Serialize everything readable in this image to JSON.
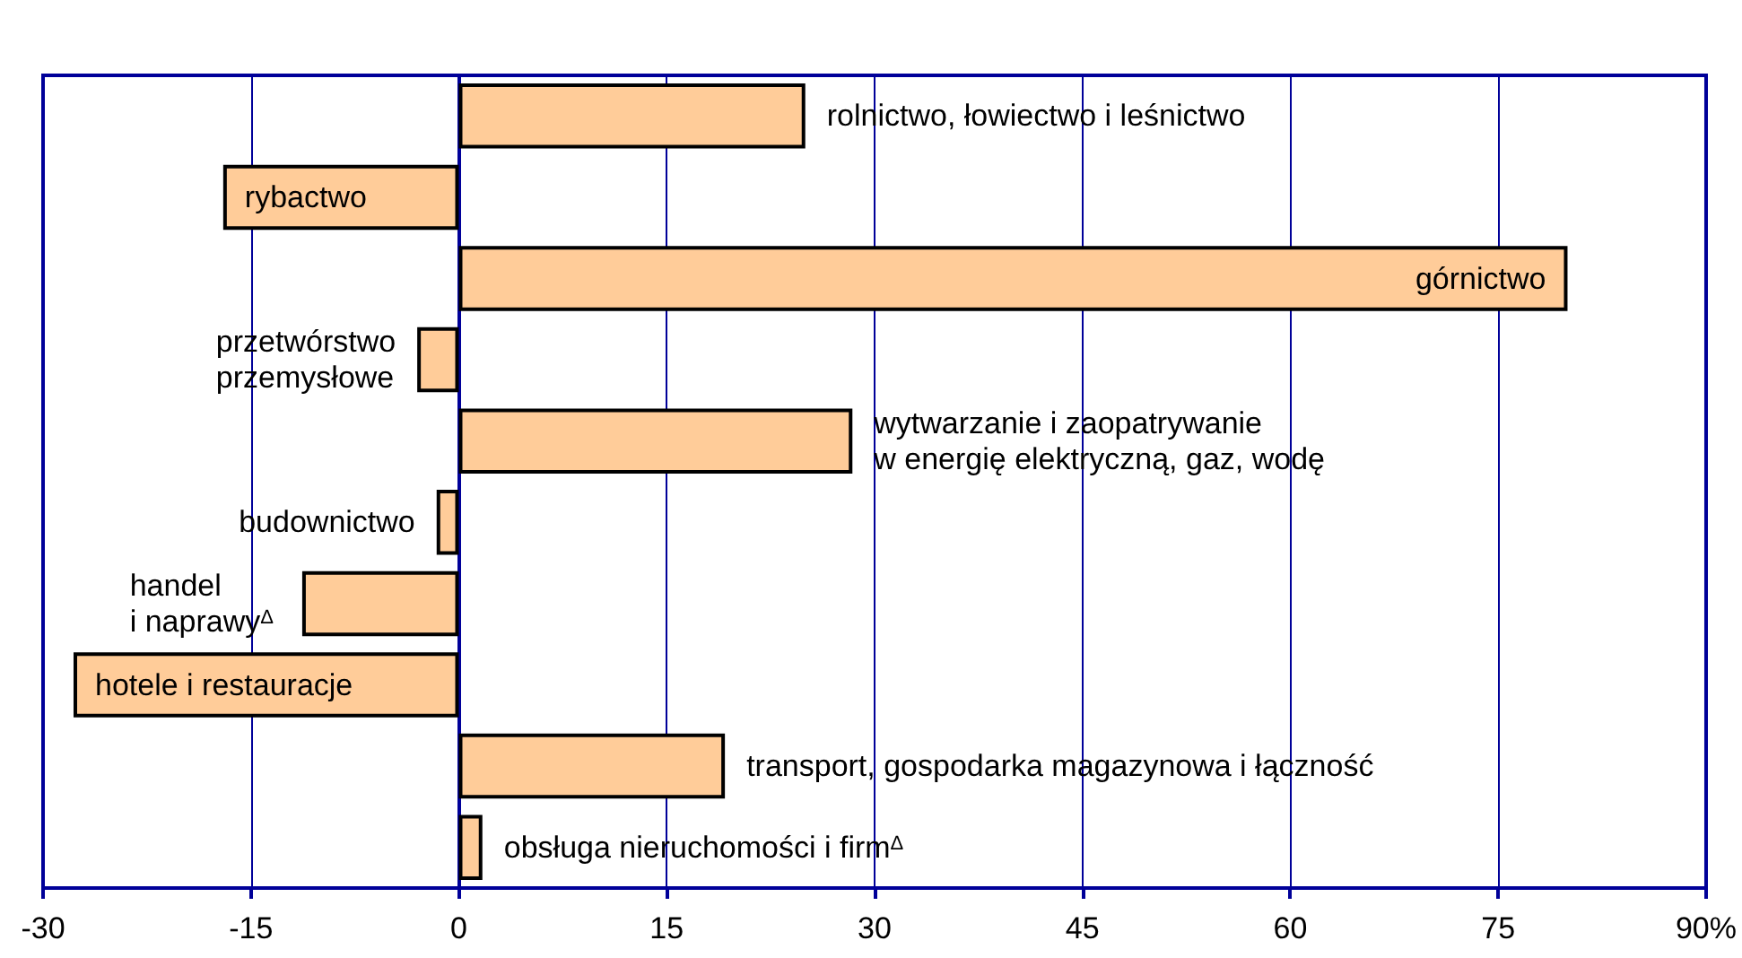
{
  "chart_data": {
    "type": "bar",
    "orientation": "horizontal",
    "categories": [
      "rolnictwo, łowiectwo i leśnictwo",
      "rybactwo",
      "górnictwo",
      "przetwórstwo\nprzemysłowe",
      "wytwarzanie i zaopatrywanie\nw energię elektryczną, gaz, wodę",
      "budownictwo",
      "handel\ni naprawy$^{Δ}$",
      "hotele i restauracje",
      "transport, gospodarka magazynowa i łączność",
      "obsługa nieruchomości i firm$^{Δ}$"
    ],
    "values": [
      25,
      -17,
      80,
      -3,
      28.4,
      -1.6,
      -11.3,
      -27.8,
      19.2,
      1.7
    ],
    "color": "#ffcc99",
    "xlim": [
      -30,
      90
    ],
    "xticks": [
      -30,
      -15,
      0,
      15,
      30,
      45,
      60,
      75,
      {
        "value": 90,
        "label": "90%"
      }
    ],
    "grid": "x"
  }
}
